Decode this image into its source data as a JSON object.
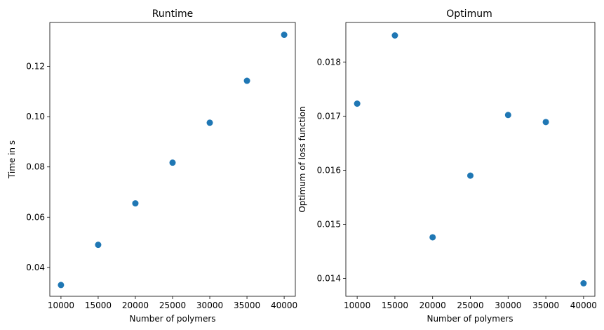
{
  "chart_data": [
    {
      "type": "scatter",
      "title": "Runtime",
      "xlabel": "Number of polymers",
      "ylabel": "Time in s",
      "x": [
        10000,
        15000,
        20000,
        25000,
        30000,
        35000,
        40000
      ],
      "y": [
        0.033,
        0.049,
        0.0655,
        0.0817,
        0.0976,
        0.1143,
        0.1326
      ],
      "xlim": [
        8500,
        41500
      ],
      "ylim": [
        0.0285,
        0.1375
      ],
      "xticks": [
        10000,
        15000,
        20000,
        25000,
        30000,
        35000,
        40000
      ],
      "yticks": [
        0.04,
        0.06,
        0.08,
        0.1,
        0.12
      ],
      "ytick_labels": [
        "0.04",
        "0.06",
        "0.08",
        "0.10",
        "0.12"
      ],
      "color": "#1f77b4",
      "grid": false
    },
    {
      "type": "scatter",
      "title": "Optimum",
      "xlabel": "Number of polymers",
      "ylabel": "Optimum of loss function",
      "x": [
        10000,
        15000,
        20000,
        25000,
        30000,
        35000,
        40000
      ],
      "y": [
        0.01723,
        0.01849,
        0.01476,
        0.0159,
        0.01702,
        0.01689,
        0.01391
      ],
      "xlim": [
        8500,
        41500
      ],
      "ylim": [
        0.01367,
        0.01873
      ],
      "xticks": [
        10000,
        15000,
        20000,
        25000,
        30000,
        35000,
        40000
      ],
      "yticks": [
        0.014,
        0.015,
        0.016,
        0.017,
        0.018
      ],
      "ytick_labels": [
        "0.014",
        "0.015",
        "0.016",
        "0.017",
        "0.018"
      ],
      "color": "#1f77b4",
      "grid": false
    }
  ]
}
